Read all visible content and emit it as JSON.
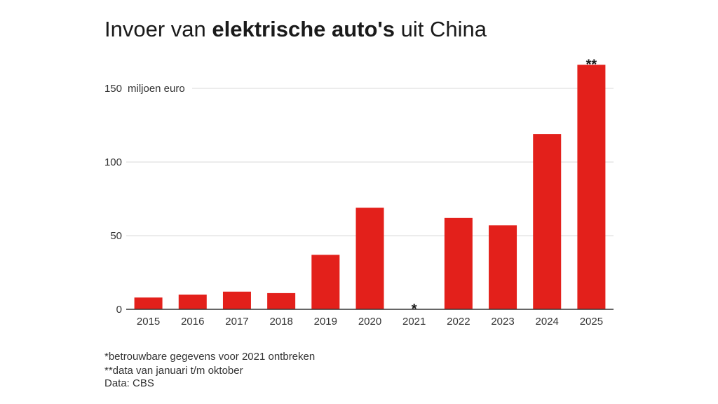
{
  "title": {
    "prefix": "Invoer van ",
    "bold": "elektrische auto's",
    "suffix": " uit China"
  },
  "chart_data": {
    "type": "bar",
    "title": "Invoer van elektrische auto's uit China",
    "categories": [
      "2015",
      "2016",
      "2017",
      "2018",
      "2019",
      "2020",
      "2021",
      "2022",
      "2023",
      "2024",
      "2025"
    ],
    "values": [
      8,
      10,
      12,
      11,
      37,
      69,
      null,
      62,
      57,
      119,
      166
    ],
    "bar_annotations": {
      "2021": "*",
      "2025": "**"
    },
    "unit_label": "miljoen euro",
    "yticks": [
      0,
      50,
      100,
      150
    ],
    "ylim": [
      0,
      166
    ],
    "xlabel": "",
    "ylabel": "miljoen euro",
    "grid": true,
    "bar_color": "#e3201b"
  },
  "footnotes": [
    "*betrouwbare gegevens voor 2021 ontbreken",
    "**data van januari t/m oktober",
    "Data: CBS"
  ]
}
